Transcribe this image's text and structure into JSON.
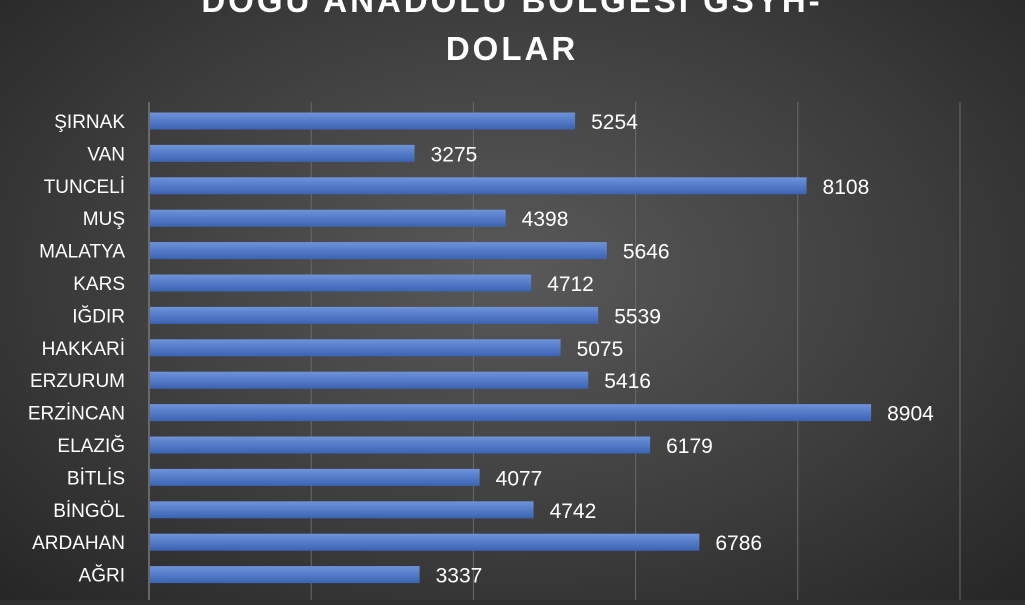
{
  "chart_data": {
    "type": "bar",
    "orientation": "horizontal",
    "title_line1": "DOĞU ANADOLU BÖLGESİ GSYH-",
    "title_line2": "DOLAR",
    "categories": [
      "ŞIRNAK",
      "VAN",
      "TUNCELİ",
      "MUŞ",
      "MALATYA",
      "KARS",
      "IĞDIR",
      "HAKKARİ",
      "ERZURUM",
      "ERZİNCAN",
      "ELAZIĞ",
      "BİTLİS",
      "BİNGÖL",
      "ARDAHAN",
      "AĞRI"
    ],
    "values": [
      5254,
      3275,
      8108,
      4398,
      5646,
      4712,
      5539,
      5075,
      5416,
      8904,
      6179,
      4077,
      4742,
      6786,
      3337
    ],
    "xlim": [
      0,
      10000
    ],
    "grid": true,
    "legend": "none",
    "colors": {
      "bar": "#4472c4",
      "bar_highlight": "#6e93da",
      "text": "#ffffff",
      "grid": "#6a6a6a"
    }
  }
}
